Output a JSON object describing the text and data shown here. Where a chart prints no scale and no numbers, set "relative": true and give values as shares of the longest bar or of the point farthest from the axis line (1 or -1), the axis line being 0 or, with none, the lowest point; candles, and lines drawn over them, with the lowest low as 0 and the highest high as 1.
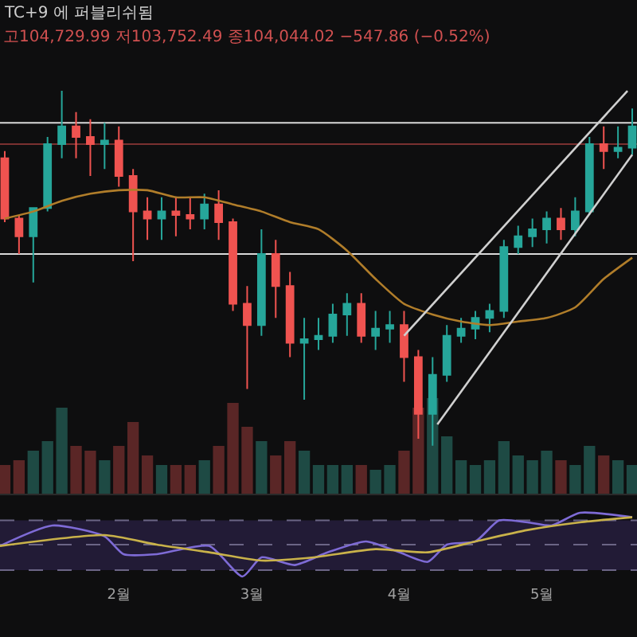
{
  "chart_data": [
    {
      "type": "candlestick",
      "title": "TC+9 에 퍼블리쉬됨",
      "subtitle": "고104,729.99 저103,752.49 종104,044.02 −547.86 (−0.52%)",
      "relative": true,
      "tick_labels": false,
      "xlim": [
        "--01-07",
        "--05-21"
      ],
      "xticks": [
        {
          "value": "--02-01",
          "label": "2월"
        },
        {
          "value": "--03-01",
          "label": "3월"
        },
        {
          "value": "--04-01",
          "label": "4월"
        },
        {
          "value": "--05-01",
          "label": "5월"
        }
      ],
      "ref_lines": [
        {
          "axis": "y",
          "value": 0.91,
          "color": "#d9d9d9"
        },
        {
          "axis": "y",
          "value": 0.85,
          "color": "#7a3030"
        },
        {
          "axis": "y",
          "value": 0.54,
          "color": "#d9d9d9"
        }
      ],
      "series": [
        {
          "type": "candlestick",
          "x": [
            "--01-08",
            "--01-11",
            "--01-14",
            "--01-17",
            "--01-20",
            "--01-23",
            "--01-26",
            "--01-29",
            "--02-01",
            "--02-04",
            "--02-07",
            "--02-10",
            "--02-13",
            "--02-16",
            "--02-19",
            "--02-22",
            "--02-25",
            "--02-28",
            "--03-03",
            "--03-06",
            "--03-09",
            "--03-12",
            "--03-15",
            "--03-18",
            "--03-21",
            "--03-24",
            "--03-27",
            "--03-30",
            "--04-02",
            "--04-05",
            "--04-08",
            "--04-11",
            "--04-14",
            "--04-17",
            "--04-20",
            "--04-23",
            "--04-26",
            "--04-29",
            "--05-02",
            "--05-05",
            "--05-08",
            "--05-11",
            "--05-14",
            "--05-17",
            "--05-20"
          ],
          "ohlc": [
            [
              0.81,
              0.83,
              0.63,
              0.64
            ],
            [
              0.64,
              0.65,
              0.54,
              0.59
            ],
            [
              0.59,
              0.67,
              0.46,
              0.67
            ],
            [
              0.67,
              0.87,
              0.66,
              0.85
            ],
            [
              0.85,
              1.0,
              0.81,
              0.9
            ],
            [
              0.9,
              0.94,
              0.81,
              0.87
            ],
            [
              0.87,
              0.92,
              0.76,
              0.85
            ],
            [
              0.85,
              0.91,
              0.78,
              0.86
            ],
            [
              0.86,
              0.9,
              0.73,
              0.76
            ],
            [
              0.76,
              0.78,
              0.52,
              0.66
            ],
            [
              0.66,
              0.7,
              0.58,
              0.64
            ],
            [
              0.64,
              0.7,
              0.58,
              0.66
            ],
            [
              0.66,
              0.7,
              0.59,
              0.65
            ],
            [
              0.65,
              0.7,
              0.61,
              0.64
            ],
            [
              0.64,
              0.71,
              0.61,
              0.68
            ],
            [
              0.68,
              0.72,
              0.58,
              0.63
            ],
            [
              0.63,
              0.64,
              0.38,
              0.4
            ],
            [
              0.4,
              0.45,
              0.16,
              0.34
            ],
            [
              0.34,
              0.61,
              0.31,
              0.54
            ],
            [
              0.54,
              0.58,
              0.36,
              0.45
            ],
            [
              0.45,
              0.49,
              0.25,
              0.29
            ],
            [
              0.29,
              0.36,
              0.13,
              0.3
            ],
            [
              0.3,
              0.36,
              0.27,
              0.31
            ],
            [
              0.31,
              0.4,
              0.29,
              0.37
            ],
            [
              0.37,
              0.43,
              0.31,
              0.4
            ],
            [
              0.4,
              0.43,
              0.29,
              0.31
            ],
            [
              0.31,
              0.38,
              0.27,
              0.33
            ],
            [
              0.33,
              0.38,
              0.29,
              0.34
            ],
            [
              0.34,
              0.38,
              0.18,
              0.25
            ],
            [
              0.25,
              0.27,
              0.02,
              0.09
            ],
            [
              0.09,
              0.25,
              0.0,
              0.2
            ],
            [
              0.2,
              0.34,
              0.18,
              0.31
            ],
            [
              0.31,
              0.36,
              0.29,
              0.33
            ],
            [
              0.33,
              0.38,
              0.3,
              0.36
            ],
            [
              0.36,
              0.4,
              0.32,
              0.38
            ],
            [
              0.38,
              0.58,
              0.36,
              0.56
            ],
            [
              0.56,
              0.62,
              0.54,
              0.59
            ],
            [
              0.59,
              0.64,
              0.56,
              0.61
            ],
            [
              0.61,
              0.66,
              0.57,
              0.64
            ],
            [
              0.64,
              0.67,
              0.58,
              0.61
            ],
            [
              0.61,
              0.7,
              0.59,
              0.66
            ],
            [
              0.66,
              0.87,
              0.65,
              0.85
            ],
            [
              0.85,
              0.9,
              0.78,
              0.83
            ],
            [
              0.83,
              0.9,
              0.81,
              0.84
            ],
            [
              0.84,
              0.95,
              0.82,
              0.9
            ]
          ]
        },
        {
          "type": "line",
          "color": "#b07d2a",
          "x": [
            "--01-08",
            "--01-14",
            "--01-20",
            "--01-26",
            "--02-01",
            "--02-07",
            "--02-13",
            "--02-19",
            "--02-25",
            "--03-03",
            "--03-09",
            "--03-15",
            "--03-21",
            "--03-27",
            "--04-02",
            "--04-08",
            "--04-14",
            "--04-20",
            "--04-26",
            "--05-02",
            "--05-08",
            "--05-14",
            "--05-20"
          ],
          "values": [
            0.64,
            0.66,
            0.69,
            0.71,
            0.72,
            0.72,
            0.7,
            0.7,
            0.68,
            0.66,
            0.63,
            0.61,
            0.55,
            0.47,
            0.4,
            0.37,
            0.35,
            0.34,
            0.35,
            0.36,
            0.39,
            0.47,
            0.53
          ]
        },
        {
          "type": "line",
          "color": "#d0d0d0",
          "x": [
            "--04-02",
            "--05-19"
          ],
          "values": [
            0.31,
            1.0
          ]
        },
        {
          "type": "line",
          "color": "#d0d0d0",
          "x": [
            "--04-09",
            "--05-20"
          ],
          "values": [
            0.06,
            0.82
          ]
        }
      ]
    },
    {
      "type": "bar",
      "relative": true,
      "tick_labels": false,
      "xlim": [
        "--01-07",
        "--05-21"
      ],
      "x": [
        "--01-08",
        "--01-11",
        "--01-14",
        "--01-17",
        "--01-20",
        "--01-23",
        "--01-26",
        "--01-29",
        "--02-01",
        "--02-04",
        "--02-07",
        "--02-10",
        "--02-13",
        "--02-16",
        "--02-19",
        "--02-22",
        "--02-25",
        "--02-28",
        "--03-03",
        "--03-06",
        "--03-09",
        "--03-12",
        "--03-15",
        "--03-18",
        "--03-21",
        "--03-24",
        "--03-27",
        "--03-30",
        "--04-02",
        "--04-05",
        "--04-08",
        "--04-11",
        "--04-14",
        "--04-17",
        "--04-20",
        "--04-23",
        "--04-26",
        "--04-29",
        "--05-02",
        "--05-05",
        "--05-08",
        "--05-11",
        "--05-14",
        "--05-17",
        "--05-20"
      ],
      "values": [
        0.3,
        0.35,
        0.45,
        0.55,
        0.9,
        0.5,
        0.45,
        0.35,
        0.5,
        0.75,
        0.4,
        0.3,
        0.3,
        0.3,
        0.35,
        0.5,
        0.95,
        0.7,
        0.55,
        0.4,
        0.55,
        0.45,
        0.3,
        0.3,
        0.3,
        0.3,
        0.25,
        0.3,
        0.45,
        0.9,
        1.0,
        0.6,
        0.35,
        0.3,
        0.35,
        0.55,
        0.4,
        0.35,
        0.45,
        0.35,
        0.3,
        0.5,
        0.4,
        0.35,
        0.3
      ],
      "colors": [
        "#5a2626",
        "#5a2626",
        "#1e4a44",
        "#1e4a44",
        "#1e4a44",
        "#5a2626",
        "#5a2626",
        "#1e4a44",
        "#5a2626",
        "#5a2626",
        "#5a2626",
        "#1e4a44",
        "#5a2626",
        "#5a2626",
        "#1e4a44",
        "#5a2626",
        "#5a2626",
        "#5a2626",
        "#1e4a44",
        "#5a2626",
        "#5a2626",
        "#1e4a44",
        "#1e4a44",
        "#1e4a44",
        "#1e4a44",
        "#5a2626",
        "#1e4a44",
        "#1e4a44",
        "#5a2626",
        "#5a2626",
        "#1e4a44",
        "#1e4a44",
        "#1e4a44",
        "#1e4a44",
        "#1e4a44",
        "#1e4a44",
        "#1e4a44",
        "#1e4a44",
        "#1e4a44",
        "#5a2626",
        "#1e4a44",
        "#1e4a44",
        "#5a2626",
        "#1e4a44",
        "#1e4a44"
      ]
    },
    {
      "type": "line",
      "relative": true,
      "tick_labels": "x",
      "xlim": [
        "--01-07",
        "--05-21"
      ],
      "xticks": [
        {
          "value": "--02-01",
          "label": "2월"
        },
        {
          "value": "--03-01",
          "label": "3월"
        },
        {
          "value": "--04-01",
          "label": "4월"
        },
        {
          "value": "--05-01",
          "label": "5월"
        }
      ],
      "bands": [
        {
          "axis": "y",
          "from": 0.1,
          "to": 0.88,
          "color": "#221b36"
        }
      ],
      "ref_lines": [
        {
          "axis": "y",
          "value": 0.88,
          "color": "#6b6585",
          "line_style": "dashed"
        },
        {
          "axis": "y",
          "value": 0.5,
          "color": "#6b6585",
          "line_style": "dashed"
        },
        {
          "axis": "y",
          "value": 0.1,
          "color": "#6b6585",
          "line_style": "dashed"
        }
      ],
      "series": [
        {
          "color": "#7e6bd6",
          "x": [
            "--01-07",
            "--01-18",
            "--01-29",
            "--02-02",
            "--02-09",
            "--02-20",
            "--02-27",
            "--03-03",
            "--03-10",
            "--03-17",
            "--03-25",
            "--04-01",
            "--04-07",
            "--04-11",
            "--04-17",
            "--04-22",
            "--04-28",
            "--05-03",
            "--05-09",
            "--05-20"
          ],
          "values": [
            0.48,
            0.8,
            0.63,
            0.35,
            0.35,
            0.48,
            0.0,
            0.3,
            0.18,
            0.38,
            0.55,
            0.38,
            0.23,
            0.5,
            0.55,
            0.88,
            0.85,
            0.8,
            1.0,
            0.93
          ]
        },
        {
          "color": "#c9b24a",
          "x": [
            "--01-07",
            "--01-29",
            "--02-09",
            "--02-20",
            "--03-03",
            "--03-14",
            "--03-27",
            "--04-07",
            "--04-17",
            "--04-28",
            "--05-09",
            "--05-20"
          ],
          "values": [
            0.48,
            0.65,
            0.5,
            0.38,
            0.25,
            0.3,
            0.43,
            0.38,
            0.55,
            0.73,
            0.85,
            0.93
          ]
        }
      ]
    }
  ]
}
